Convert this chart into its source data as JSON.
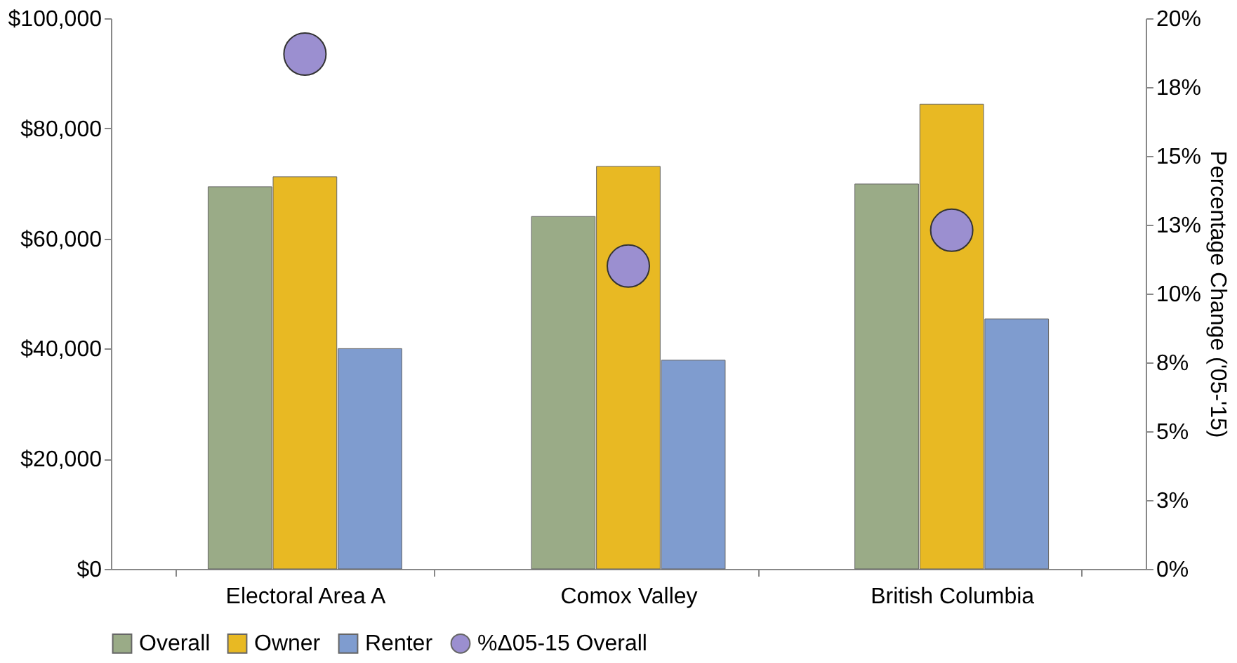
{
  "chart_data": {
    "type": "bar",
    "categories": [
      "Electoral Area A",
      "Comox Valley",
      "British Columbia"
    ],
    "series": [
      {
        "name": "Overall",
        "color": "#9aab87",
        "values": [
          69400,
          64000,
          69900
        ]
      },
      {
        "name": "Owner",
        "color": "#e8b923",
        "values": [
          71200,
          73100,
          84400
        ]
      },
      {
        "name": "Renter",
        "color": "#7f9ccf",
        "values": [
          40000,
          37900,
          45400
        ]
      },
      {
        "name": "%Δ05-15 Overall",
        "color": "#9b8fd0",
        "type": "scatter",
        "axis": "y2",
        "values": [
          18.7,
          11.0,
          12.3
        ]
      }
    ],
    "ylim": [
      0,
      100000
    ],
    "yticks": [
      {
        "value": 0,
        "label": "$0"
      },
      {
        "value": 20000,
        "label": "$20,000"
      },
      {
        "value": 40000,
        "label": "$40,000"
      },
      {
        "value": 60000,
        "label": "$60,000"
      },
      {
        "value": 80000,
        "label": "$80,000"
      },
      {
        "value": 100000,
        "label": "$100,000"
      }
    ],
    "y2label": "Percentage Change ('05-'15)",
    "y2lim": [
      0,
      20
    ],
    "y2ticks": [
      {
        "value": 0,
        "label": "0%"
      },
      {
        "value": 2.5,
        "label": "3%"
      },
      {
        "value": 5,
        "label": "5%"
      },
      {
        "value": 7.5,
        "label": "8%"
      },
      {
        "value": 10,
        "label": "10%"
      },
      {
        "value": 12.5,
        "label": "13%"
      },
      {
        "value": 15,
        "label": "15%"
      },
      {
        "value": 17.5,
        "label": "18%"
      },
      {
        "value": 20,
        "label": "20%"
      }
    ],
    "grid": false,
    "legend": "bottom",
    "marker": "circle"
  }
}
